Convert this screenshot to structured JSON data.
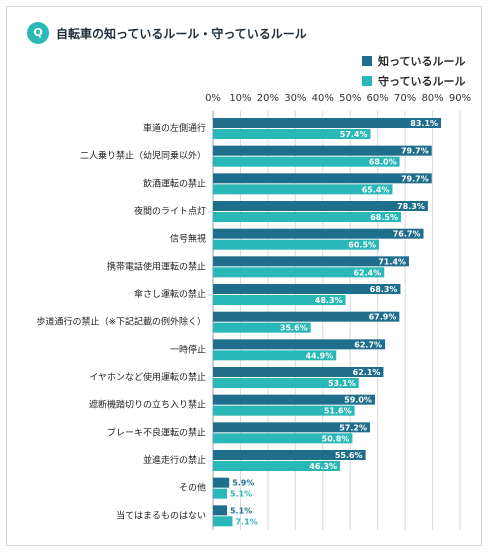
{
  "header": {
    "badge": "Q",
    "title": "自転車の知っているルール・守っているルール"
  },
  "colors": {
    "known": "#1f6e8c",
    "followed": "#2ab7b7",
    "badge": "#2ab7b7"
  },
  "chart_data": {
    "type": "bar",
    "orientation": "horizontal",
    "categories": [
      "車道の左側通行",
      "二人乗り禁止（幼児同乗以外）",
      "飲酒運転の禁止",
      "夜間のライト点灯",
      "信号無視",
      "携帯電話使用運転の禁止",
      "傘さし運転の禁止",
      "歩道通行の禁止（※下記記載の例外除く）",
      "一時停止",
      "イヤホンなど使用運転の禁止",
      "遮断機踏切りの立ち入り禁止",
      "ブレーキ不良運転の禁止",
      "並進走行の禁止",
      "その他",
      "当てはまるものはない"
    ],
    "series": [
      {
        "name": "知っているルール",
        "values": [
          83.1,
          79.7,
          79.7,
          78.3,
          76.7,
          71.4,
          68.3,
          67.9,
          62.7,
          62.1,
          59.0,
          57.2,
          55.6,
          5.9,
          5.1
        ],
        "labels": [
          "83.1%",
          "79.7%",
          "79.7%",
          "78.3%",
          "76.7%",
          "71.4%",
          "68.3%",
          "67.9%",
          "62.7%",
          "62.1%",
          "59.0%",
          "57.2%",
          "55.6%",
          "5.9%",
          "5.1%"
        ]
      },
      {
        "name": "守っているルール",
        "values": [
          57.4,
          68.0,
          65.4,
          68.5,
          60.5,
          62.4,
          48.3,
          35.6,
          44.9,
          53.1,
          51.6,
          50.8,
          46.3,
          5.1,
          7.1
        ],
        "labels": [
          "57.4%",
          "68.0%",
          "65.4%",
          "68.5%",
          "60.5%",
          "62.4%",
          "48.3%",
          "35.6%",
          "44.9%",
          "53.1%",
          "51.6%",
          "50.8%",
          "46.3%",
          "5.1%",
          "7.1%"
        ]
      }
    ],
    "xlim": [
      0,
      90
    ],
    "xticks": [
      "0%",
      "10%",
      "20%",
      "30%",
      "40%",
      "50%",
      "60%",
      "70%",
      "80%",
      "90%"
    ],
    "grid": true,
    "legend_position": "top-right"
  }
}
